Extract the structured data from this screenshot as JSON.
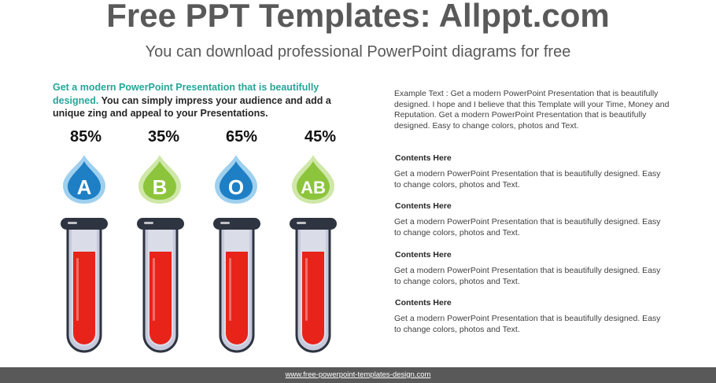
{
  "header": {
    "title": "Free PPT Templates: Allppt.com",
    "subtitle": "You can download professional PowerPoint diagrams for free"
  },
  "intro": {
    "accent": "Get a modern PowerPoint  Presentation that is beautifully designed.",
    "body": " You can simply impress your audience and add a unique zing and appeal to your Presentations."
  },
  "groups": [
    {
      "percent_label": "85%",
      "value": 85,
      "letter": "A",
      "color": "#1e7fc4"
    },
    {
      "percent_label": "35%",
      "value": 35,
      "letter": "B",
      "color": "#8cc43c"
    },
    {
      "percent_label": "65%",
      "value": 65,
      "letter": "O",
      "color": "#1e7fc4"
    },
    {
      "percent_label": "45%",
      "value": 45,
      "letter": "AB",
      "color": "#8cc43c"
    }
  ],
  "right": {
    "example_text": "Example Text : Get a modern PowerPoint  Presentation that is beautifully designed. I hope and I believe that this Template will your Time, Money and Reputation. Get a modern PowerPoint  Presentation that is beautifully designed. Easy to change colors, photos and Text.",
    "items": [
      {
        "heading": "Contents Here",
        "body": "Get a modern PowerPoint  Presentation that is beautifully designed. Easy to change colors, photos and Text."
      },
      {
        "heading": "Contents Here",
        "body": "Get a modern PowerPoint  Presentation that is beautifully designed. Easy to change colors, photos and Text."
      },
      {
        "heading": "Contents Here",
        "body": "Get a modern PowerPoint  Presentation that is beautifully designed. Easy to change colors, photos and Text."
      },
      {
        "heading": "Contents Here",
        "body": "Get a modern PowerPoint  Presentation that is beautifully designed. Easy to change colors, photos and Text."
      }
    ]
  },
  "footer": {
    "link": "www.free-powerpoint-templates-design.com"
  },
  "colors": {
    "blood": "#e8231a",
    "tube_outline": "#2e3440",
    "tube_glass": "#c7c9dc",
    "accent": "#26a69a"
  }
}
